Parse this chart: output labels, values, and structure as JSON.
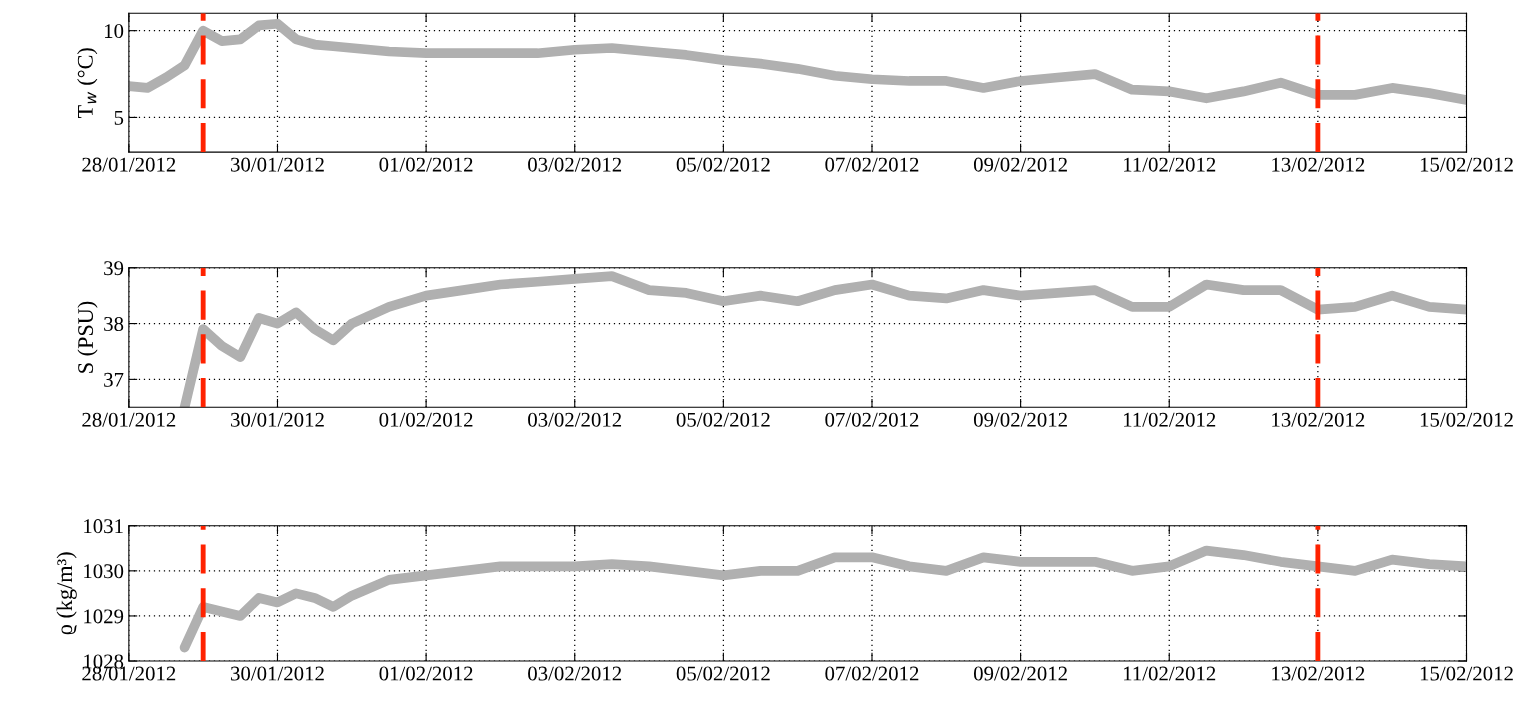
{
  "chart_data": [
    {
      "type": "line",
      "ylabel": "T$_{w}$ (°C)",
      "grid": true,
      "line_style": "solid",
      "x": [
        "2012-01-28T00:00",
        "2012-01-28T06:00",
        "2012-01-28T12:00",
        "2012-01-28T18:00",
        "2012-01-29T00:00",
        "2012-01-29T06:00",
        "2012-01-29T12:00",
        "2012-01-29T18:00",
        "2012-01-30T00:00",
        "2012-01-30T06:00",
        "2012-01-30T12:00",
        "2012-01-30T18:00",
        "2012-01-31T00:00",
        "2012-01-31T12:00",
        "2012-02-01T00:00",
        "2012-02-01T12:00",
        "2012-02-02T00:00",
        "2012-02-02T12:00",
        "2012-02-03T00:00",
        "2012-02-03T12:00",
        "2012-02-04T00:00",
        "2012-02-04T12:00",
        "2012-02-05T00:00",
        "2012-02-05T12:00",
        "2012-02-06T00:00",
        "2012-02-06T12:00",
        "2012-02-07T00:00",
        "2012-02-07T12:00",
        "2012-02-08T00:00",
        "2012-02-08T12:00",
        "2012-02-09T00:00",
        "2012-02-09T12:00",
        "2012-02-10T00:00",
        "2012-02-10T12:00",
        "2012-02-11T00:00",
        "2012-02-11T12:00",
        "2012-02-12T00:00",
        "2012-02-12T12:00",
        "2012-02-13T00:00",
        "2012-02-13T12:00",
        "2012-02-14T00:00",
        "2012-02-14T12:00",
        "2012-02-15T00:00"
      ],
      "series": [
        {
          "color": "#b0b0b0",
          "values": [
            6.8,
            6.7,
            7.3,
            8.0,
            10.0,
            9.4,
            9.5,
            10.3,
            10.4,
            9.5,
            9.2,
            9.1,
            9.0,
            8.8,
            8.7,
            8.7,
            8.7,
            8.7,
            8.9,
            9.0,
            8.8,
            8.6,
            8.3,
            8.1,
            7.8,
            7.4,
            7.2,
            7.1,
            7.1,
            6.7,
            7.1,
            7.3,
            7.5,
            6.6,
            6.5,
            6.1,
            6.5,
            7.0,
            6.3,
            6.3,
            6.7,
            6.4,
            6.0
          ]
        }
      ],
      "xlim": [
        "2012-01-28",
        "2012-02-15"
      ],
      "ylim": [
        3,
        11
      ],
      "yticks": [
        5,
        10
      ],
      "xticks": [
        {
          "value": "2012-01-28",
          "label": "28/01/2012"
        },
        {
          "value": "2012-01-30",
          "label": "30/01/2012"
        },
        {
          "value": "2012-02-01",
          "label": "01/02/2012"
        },
        {
          "value": "2012-02-03",
          "label": "03/02/2012"
        },
        {
          "value": "2012-02-05",
          "label": "05/02/2012"
        },
        {
          "value": "2012-02-07",
          "label": "07/02/2012"
        },
        {
          "value": "2012-02-09",
          "label": "09/02/2012"
        },
        {
          "value": "2012-02-11",
          "label": "11/02/2012"
        },
        {
          "value": "2012-02-13",
          "label": "13/02/2012"
        },
        {
          "value": "2012-02-15",
          "label": "15/02/2012"
        }
      ],
      "ref_lines": [
        {
          "axis": "x",
          "value": "2012-01-29T00:00",
          "color": "#ff2200",
          "line_style": "dashed"
        },
        {
          "axis": "x",
          "value": "2012-02-13T00:00",
          "color": "#ff2200",
          "line_style": "dashed"
        }
      ]
    },
    {
      "type": "line",
      "ylabel": "S (PSU)",
      "grid": true,
      "line_style": "solid",
      "x": [
        "2012-01-28T18:00",
        "2012-01-29T00:00",
        "2012-01-29T06:00",
        "2012-01-29T12:00",
        "2012-01-29T18:00",
        "2012-01-30T00:00",
        "2012-01-30T06:00",
        "2012-01-30T12:00",
        "2012-01-30T18:00",
        "2012-01-31T00:00",
        "2012-01-31T12:00",
        "2012-02-01T00:00",
        "2012-02-01T12:00",
        "2012-02-02T00:00",
        "2012-02-02T12:00",
        "2012-02-03T00:00",
        "2012-02-03T12:00",
        "2012-02-04T00:00",
        "2012-02-04T12:00",
        "2012-02-05T00:00",
        "2012-02-05T12:00",
        "2012-02-06T00:00",
        "2012-02-06T12:00",
        "2012-02-07T00:00",
        "2012-02-07T12:00",
        "2012-02-08T00:00",
        "2012-02-08T12:00",
        "2012-02-09T00:00",
        "2012-02-09T12:00",
        "2012-02-10T00:00",
        "2012-02-10T12:00",
        "2012-02-11T00:00",
        "2012-02-11T12:00",
        "2012-02-12T00:00",
        "2012-02-12T12:00",
        "2012-02-13T00:00",
        "2012-02-13T12:00",
        "2012-02-14T00:00",
        "2012-02-14T12:00",
        "2012-02-15T00:00"
      ],
      "series": [
        {
          "color": "#b0b0b0",
          "values": [
            36.5,
            37.9,
            37.6,
            37.4,
            38.1,
            38.0,
            38.2,
            37.9,
            37.7,
            38.0,
            38.3,
            38.5,
            38.6,
            38.7,
            38.75,
            38.8,
            38.85,
            38.6,
            38.55,
            38.4,
            38.5,
            38.4,
            38.6,
            38.7,
            38.5,
            38.45,
            38.6,
            38.5,
            38.55,
            38.6,
            38.3,
            38.3,
            38.7,
            38.6,
            38.6,
            38.25,
            38.3,
            38.5,
            38.3,
            38.25
          ]
        }
      ],
      "xlim": [
        "2012-01-28",
        "2012-02-15"
      ],
      "ylim": [
        36.5,
        39
      ],
      "yticks": [
        37,
        38,
        39
      ],
      "xticks": [
        {
          "value": "2012-01-28",
          "label": "28/01/2012"
        },
        {
          "value": "2012-01-30",
          "label": "30/01/2012"
        },
        {
          "value": "2012-02-01",
          "label": "01/02/2012"
        },
        {
          "value": "2012-02-03",
          "label": "03/02/2012"
        },
        {
          "value": "2012-02-05",
          "label": "05/02/2012"
        },
        {
          "value": "2012-02-07",
          "label": "07/02/2012"
        },
        {
          "value": "2012-02-09",
          "label": "09/02/2012"
        },
        {
          "value": "2012-02-11",
          "label": "11/02/2012"
        },
        {
          "value": "2012-02-13",
          "label": "13/02/2012"
        },
        {
          "value": "2012-02-15",
          "label": "15/02/2012"
        }
      ],
      "ref_lines": [
        {
          "axis": "x",
          "value": "2012-01-29T00:00",
          "color": "#ff2200",
          "line_style": "dashed"
        },
        {
          "axis": "x",
          "value": "2012-02-13T00:00",
          "color": "#ff2200",
          "line_style": "dashed"
        }
      ]
    },
    {
      "type": "line",
      "ylabel": "ϱ (kg/m³)",
      "grid": true,
      "line_style": "solid",
      "x": [
        "2012-01-28T18:00",
        "2012-01-29T00:00",
        "2012-01-29T06:00",
        "2012-01-29T12:00",
        "2012-01-29T18:00",
        "2012-01-30T00:00",
        "2012-01-30T06:00",
        "2012-01-30T12:00",
        "2012-01-30T18:00",
        "2012-01-31T00:00",
        "2012-01-31T12:00",
        "2012-02-01T00:00",
        "2012-02-01T12:00",
        "2012-02-02T00:00",
        "2012-02-02T12:00",
        "2012-02-03T00:00",
        "2012-02-03T12:00",
        "2012-02-04T00:00",
        "2012-02-04T12:00",
        "2012-02-05T00:00",
        "2012-02-05T12:00",
        "2012-02-06T00:00",
        "2012-02-06T12:00",
        "2012-02-07T00:00",
        "2012-02-07T12:00",
        "2012-02-08T00:00",
        "2012-02-08T12:00",
        "2012-02-09T00:00",
        "2012-02-09T12:00",
        "2012-02-10T00:00",
        "2012-02-10T12:00",
        "2012-02-11T00:00",
        "2012-02-11T12:00",
        "2012-02-12T00:00",
        "2012-02-12T12:00",
        "2012-02-13T00:00",
        "2012-02-13T12:00",
        "2012-02-14T00:00",
        "2012-02-14T12:00",
        "2012-02-15T00:00"
      ],
      "series": [
        {
          "color": "#b0b0b0",
          "values": [
            1028.3,
            1029.2,
            1029.1,
            1029.0,
            1029.4,
            1029.3,
            1029.5,
            1029.4,
            1029.2,
            1029.45,
            1029.8,
            1029.9,
            1030.0,
            1030.1,
            1030.1,
            1030.1,
            1030.15,
            1030.1,
            1030.0,
            1029.9,
            1030.0,
            1030.0,
            1030.3,
            1030.3,
            1030.1,
            1030.0,
            1030.3,
            1030.2,
            1030.2,
            1030.2,
            1030.0,
            1030.1,
            1030.45,
            1030.35,
            1030.2,
            1030.1,
            1030.0,
            1030.25,
            1030.15,
            1030.1
          ]
        }
      ],
      "xlim": [
        "2012-01-28",
        "2012-02-15"
      ],
      "ylim": [
        1028,
        1031
      ],
      "yticks": [
        1028,
        1029,
        1030,
        1031
      ],
      "xticks": [
        {
          "value": "2012-01-28",
          "label": "28/01/2012"
        },
        {
          "value": "2012-01-30",
          "label": "30/01/2012"
        },
        {
          "value": "2012-02-01",
          "label": "01/02/2012"
        },
        {
          "value": "2012-02-03",
          "label": "03/02/2012"
        },
        {
          "value": "2012-02-05",
          "label": "05/02/2012"
        },
        {
          "value": "2012-02-07",
          "label": "07/02/2012"
        },
        {
          "value": "2012-02-09",
          "label": "09/02/2012"
        },
        {
          "value": "2012-02-11",
          "label": "11/02/2012"
        },
        {
          "value": "2012-02-13",
          "label": "13/02/2012"
        },
        {
          "value": "2012-02-15",
          "label": "15/02/2012"
        }
      ],
      "ref_lines": [
        {
          "axis": "x",
          "value": "2012-01-29T00:00",
          "color": "#ff2200",
          "line_style": "dashed"
        },
        {
          "axis": "x",
          "value": "2012-02-13T00:00",
          "color": "#ff2200",
          "line_style": "dashed"
        }
      ]
    }
  ]
}
